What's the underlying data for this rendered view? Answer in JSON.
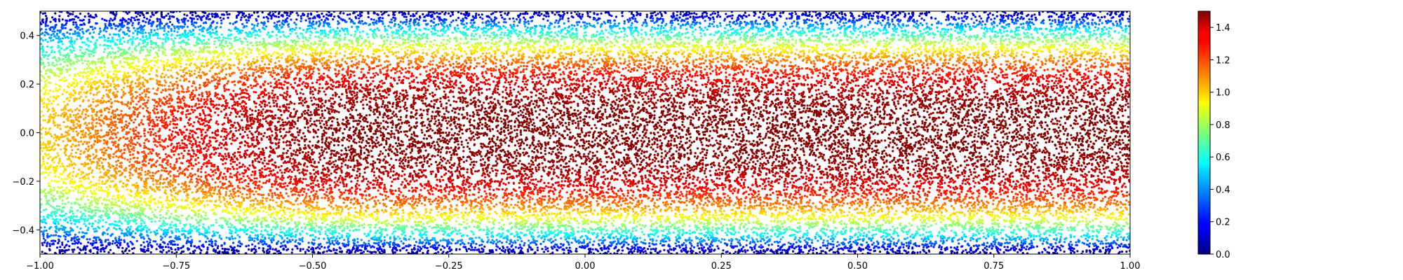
{
  "chart_data": {
    "type": "scatter",
    "title": "",
    "xlabel": "",
    "ylabel": "",
    "xlim": [
      -1.0,
      1.0
    ],
    "ylim": [
      -0.5,
      0.5
    ],
    "grid": false,
    "legend": "none",
    "x_ticks": [
      -1.0,
      -0.75,
      -0.5,
      -0.25,
      0.0,
      0.25,
      0.5,
      0.75,
      1.0
    ],
    "x_tick_labels": [
      "−1.00",
      "−0.75",
      "−0.50",
      "−0.25",
      "0.00",
      "0.25",
      "0.50",
      "0.75",
      "1.00"
    ],
    "y_ticks": [
      -0.4,
      -0.2,
      0.0,
      0.2,
      0.4
    ],
    "y_tick_labels": [
      "−0.4",
      "−0.2",
      "0.0",
      "0.2",
      "0.4"
    ],
    "colormap": "jet",
    "color_range": [
      0.0,
      1.5
    ],
    "colorbar": {
      "ticks": [
        0.0,
        0.2,
        0.4,
        0.6,
        0.8,
        1.0,
        1.2,
        1.4
      ],
      "tick_labels": [
        "0.0",
        "0.2",
        "0.4",
        "0.6",
        "0.8",
        "1.0",
        "1.2",
        "1.4"
      ],
      "placement": "right"
    },
    "value_field": {
      "profile": "developing channel velocity: value rises from about 1.0 at the center near x = -1.0 to about 1.5 at the center for x >= -0.4; value falls to 0.0 at y = -0.5 and y = 0.5",
      "center_value_at_inlet": 1.0,
      "center_value_developed": 1.5,
      "wall_value": 0.0
    },
    "point_count_estimate": 30000
  }
}
